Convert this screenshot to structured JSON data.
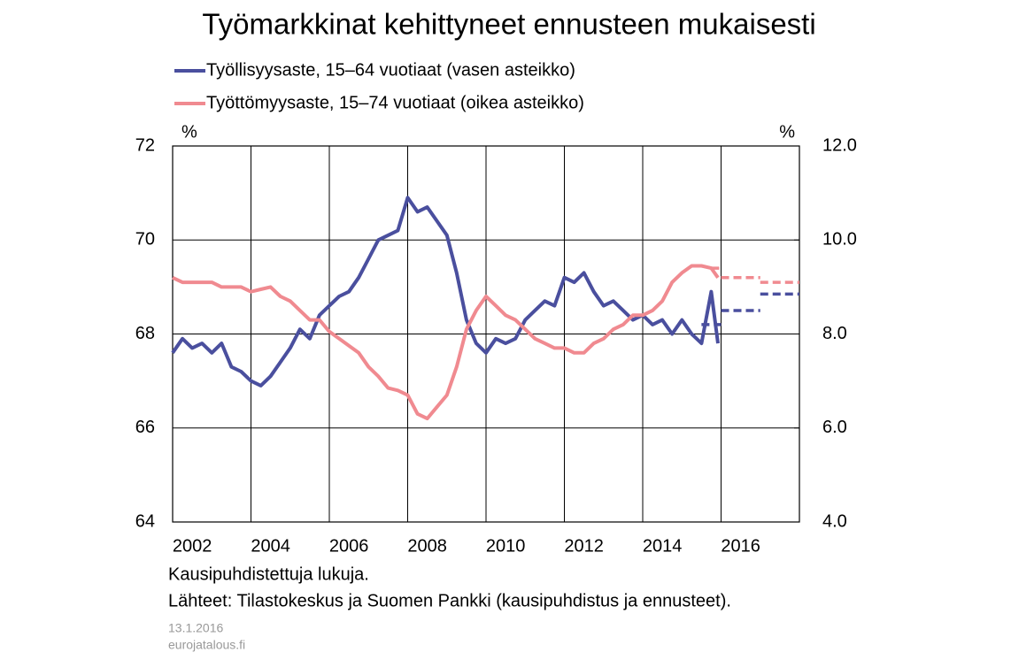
{
  "chart_data": {
    "type": "line",
    "title": "Työmarkkinat kehittyneet ennusteen mukaisesti",
    "y_unit": "%",
    "y2_unit": "%",
    "notes": [
      "Kausipuhdistettuja lukuja.",
      "Lähteet:  Tilastokeskus ja Suomen Pankki (kausipuhdistus ja ennusteet)."
    ],
    "date": "13.1.2016",
    "source_site": "eurojatalous.fi",
    "xlim": [
      2002,
      2018
    ],
    "xticks": [
      2002,
      2004,
      2006,
      2008,
      2010,
      2012,
      2014,
      2016
    ],
    "ylim": [
      64,
      72
    ],
    "yticks": [
      64,
      66,
      68,
      70,
      72
    ],
    "y2lim": [
      4,
      12
    ],
    "y2ticks": [
      {
        "value": 4,
        "label": "4.0"
      },
      {
        "value": 6,
        "label": "6.0"
      },
      {
        "value": 8,
        "label": "8.0"
      },
      {
        "value": 10,
        "label": "10.0"
      },
      {
        "value": 12,
        "label": "12.0"
      }
    ],
    "grid": true,
    "x": [
      2002,
      2002.25,
      2002.5,
      2002.75,
      2003,
      2003.25,
      2003.5,
      2003.75,
      2004,
      2004.25,
      2004.5,
      2004.75,
      2005,
      2005.25,
      2005.5,
      2005.75,
      2006,
      2006.25,
      2006.5,
      2006.75,
      2007,
      2007.25,
      2007.5,
      2007.75,
      2008,
      2008.25,
      2008.5,
      2008.75,
      2009,
      2009.25,
      2009.5,
      2009.75,
      2010,
      2010.25,
      2010.5,
      2010.75,
      2011,
      2011.25,
      2011.5,
      2011.75,
      2012,
      2012.25,
      2012.5,
      2012.75,
      2013,
      2013.25,
      2013.5,
      2013.75,
      2014,
      2014.25,
      2014.5,
      2014.75,
      2015,
      2015.25,
      2015.5,
      2015.75,
      2015.92
    ],
    "series": [
      {
        "name": "Työllisyysaste, 15–64 vuotiaat (vasen asteikko)",
        "color": "#4a4f9e",
        "axis": "y",
        "values": [
          67.6,
          67.9,
          67.7,
          67.8,
          67.6,
          67.8,
          67.3,
          67.2,
          67.0,
          66.9,
          67.1,
          67.4,
          67.7,
          68.1,
          67.9,
          68.4,
          68.6,
          68.8,
          68.9,
          69.2,
          69.6,
          70.0,
          70.1,
          70.2,
          70.9,
          70.6,
          70.7,
          70.4,
          70.1,
          69.3,
          68.3,
          67.8,
          67.6,
          67.9,
          67.8,
          67.9,
          68.3,
          68.5,
          68.7,
          68.6,
          69.2,
          69.1,
          69.3,
          68.9,
          68.6,
          68.7,
          68.5,
          68.3,
          68.4,
          68.2,
          68.3,
          68.0,
          68.3,
          68.0,
          67.8,
          68.9,
          67.8
        ],
        "forecast": [
          {
            "xlim": [
              2015.5,
              2016
            ],
            "value": 68.2
          },
          {
            "xlim": [
              2016,
              2017
            ],
            "value": 68.5
          },
          {
            "xlim": [
              2017,
              2018
            ],
            "value": 68.85
          }
        ]
      },
      {
        "name": "Työttömyysaste, 15–74 vuotiaat (oikea asteikko)",
        "color": "#f08a90",
        "axis": "y2",
        "values": [
          9.2,
          9.1,
          9.1,
          9.1,
          9.1,
          9.0,
          9.0,
          9.0,
          8.9,
          8.95,
          9.0,
          8.8,
          8.7,
          8.5,
          8.3,
          8.3,
          8.05,
          7.9,
          7.75,
          7.6,
          7.3,
          7.1,
          6.85,
          6.8,
          6.7,
          6.3,
          6.2,
          6.45,
          6.7,
          7.3,
          8.1,
          8.5,
          8.8,
          8.6,
          8.4,
          8.3,
          8.1,
          7.9,
          7.8,
          7.7,
          7.7,
          7.6,
          7.6,
          7.8,
          7.9,
          8.1,
          8.2,
          8.4,
          8.4,
          8.5,
          8.7,
          9.1,
          9.3,
          9.45,
          9.45,
          9.4,
          9.2
        ],
        "forecast": [
          {
            "xlim": [
              2015.75,
              2016
            ],
            "value": 9.4
          },
          {
            "xlim": [
              2016,
              2017
            ],
            "value": 9.2
          },
          {
            "xlim": [
              2017,
              2018
            ],
            "value": 9.1
          }
        ]
      }
    ]
  }
}
